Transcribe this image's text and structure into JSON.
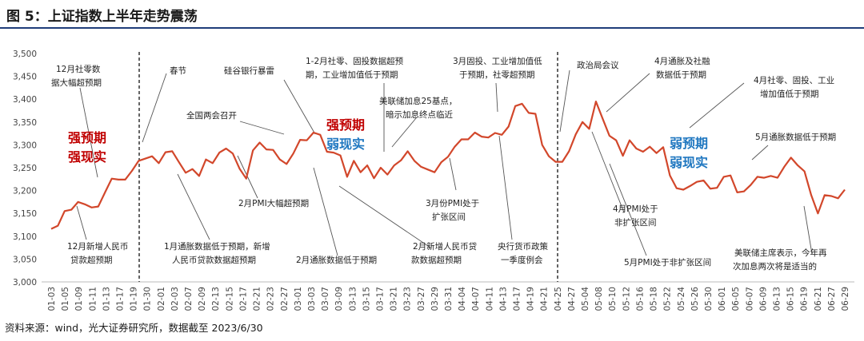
{
  "title": "图 5：上证指数上半年走势震荡",
  "source": "资料来源：wind，光大证券研究所，数据截至 2023/6/30",
  "colors": {
    "line": "#d2472b",
    "label_red": "#c00000",
    "label_blue": "#1f77c0",
    "leader": "#555555",
    "axis": "#bbbbbb"
  },
  "chart_data": {
    "type": "line",
    "title": "",
    "xlabel": "",
    "ylabel": "",
    "ylim": [
      3000,
      3500
    ],
    "yticks": [
      "3,000",
      "3,050",
      "3,100",
      "3,150",
      "3,200",
      "3,250",
      "3,300",
      "3,350",
      "3,400",
      "3,450",
      "3,500"
    ],
    "xticks": [
      "01-03",
      "01-05",
      "01-09",
      "01-11",
      "01-13",
      "01-17",
      "01-19",
      "01-30",
      "02-01",
      "02-03",
      "02-07",
      "02-09",
      "02-13",
      "02-15",
      "02-17",
      "02-21",
      "02-23",
      "02-27",
      "03-01",
      "03-03",
      "03-07",
      "03-09",
      "03-13",
      "03-15",
      "03-17",
      "03-21",
      "03-23",
      "03-27",
      "03-29",
      "03-31",
      "04-04",
      "04-07",
      "04-11",
      "04-13",
      "04-17",
      "04-19",
      "04-21",
      "04-25",
      "04-27",
      "05-04",
      "05-08",
      "05-10",
      "05-12",
      "05-16",
      "05-18",
      "05-22",
      "05-24",
      "05-26",
      "05-30",
      "06-01",
      "06-05",
      "06-07",
      "06-09",
      "06-13",
      "06-15",
      "06-19",
      "06-21",
      "06-27",
      "06-29"
    ],
    "values": [
      3116,
      3123,
      3155,
      3158,
      3175,
      3170,
      3163,
      3165,
      3196,
      3226,
      3224,
      3224,
      3243,
      3265,
      3270,
      3275,
      3260,
      3284,
      3286,
      3262,
      3239,
      3247,
      3232,
      3268,
      3260,
      3283,
      3292,
      3281,
      3248,
      3226,
      3288,
      3305,
      3290,
      3289,
      3268,
      3258,
      3281,
      3311,
      3310,
      3327,
      3322,
      3285,
      3283,
      3277,
      3230,
      3265,
      3240,
      3255,
      3227,
      3250,
      3235,
      3255,
      3266,
      3286,
      3265,
      3252,
      3246,
      3240,
      3262,
      3274,
      3296,
      3312,
      3312,
      3327,
      3318,
      3316,
      3326,
      3322,
      3340,
      3385,
      3390,
      3370,
      3368,
      3300,
      3275,
      3263,
      3263,
      3286,
      3323,
      3350,
      3335,
      3395,
      3357,
      3320,
      3310,
      3276,
      3310,
      3292,
      3285,
      3296,
      3282,
      3295,
      3233,
      3205,
      3202,
      3210,
      3219,
      3222,
      3204,
      3206,
      3230,
      3233,
      3196,
      3198,
      3212,
      3230,
      3228,
      3232,
      3228,
      3252,
      3272,
      3255,
      3242,
      3190,
      3150,
      3190,
      3188,
      3183,
      3202
    ],
    "dividers_after": [
      "01-30",
      "05-04"
    ],
    "annotations": [
      "12月社零数",
      "据大幅超预期",
      "12月新增人民币",
      "贷款超预期",
      "春节",
      "1月通胀数据低于预期，新增",
      "人民币贷款数据超预期",
      "全国两会召开",
      "2月PMI大幅超预期",
      "硅谷银行暴雷",
      "2月通胀数据低于预期",
      "1-2月社零、固投数据超预",
      "期，工业增加值低于预期",
      "美联储加息25基点，",
      "暗示加息终点临近",
      "2月新增人民币贷",
      "款数据超预期",
      "3月份PMI处于",
      "扩张区间",
      "3月固投、工业增加值低",
      "于预期，社零超预期",
      "央行货币政策",
      "一季度例会",
      "政治局会议",
      "4月PMI处于",
      "非扩张区间",
      "4月通胀及社融",
      "数据低于预期",
      "5月PMI处于非扩张区间",
      "4月社零、固投、工业",
      "增加值低于预期",
      "5月通胀数据低于预期",
      "美联储主席表示，今年再",
      "次加息两次将是适当的"
    ],
    "regime_labels": [
      {
        "lines": [
          "强预期",
          "强现实"
        ]
      },
      {
        "lines": [
          "强预期",
          "弱现实"
        ]
      },
      {
        "lines": [
          "弱预期",
          "弱现实"
        ]
      }
    ]
  }
}
